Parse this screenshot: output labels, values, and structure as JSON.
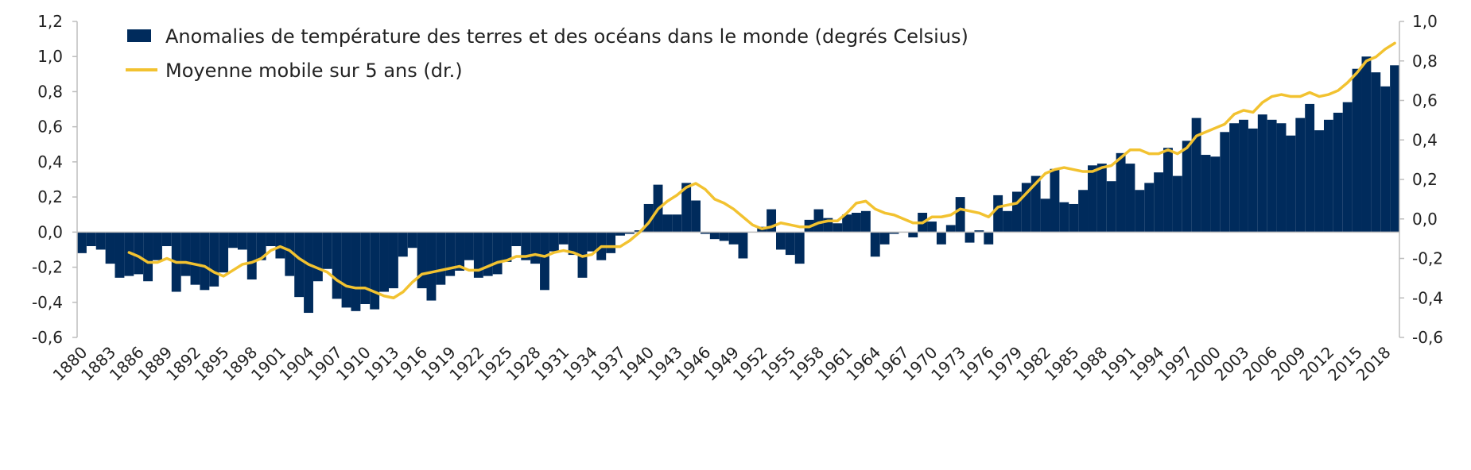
{
  "chart_data": {
    "type": "bar",
    "title": "",
    "xlabel": "",
    "ylabel": "",
    "categories": [
      1880,
      1881,
      1882,
      1883,
      1884,
      1885,
      1886,
      1887,
      1888,
      1889,
      1890,
      1891,
      1892,
      1893,
      1894,
      1895,
      1896,
      1897,
      1898,
      1899,
      1900,
      1901,
      1902,
      1903,
      1904,
      1905,
      1906,
      1907,
      1908,
      1909,
      1910,
      1911,
      1912,
      1913,
      1914,
      1915,
      1916,
      1917,
      1918,
      1919,
      1920,
      1921,
      1922,
      1923,
      1924,
      1925,
      1926,
      1927,
      1928,
      1929,
      1930,
      1931,
      1932,
      1933,
      1934,
      1935,
      1936,
      1937,
      1938,
      1939,
      1940,
      1941,
      1942,
      1943,
      1944,
      1945,
      1946,
      1947,
      1948,
      1949,
      1950,
      1951,
      1952,
      1953,
      1954,
      1955,
      1956,
      1957,
      1958,
      1959,
      1960,
      1961,
      1962,
      1963,
      1964,
      1965,
      1966,
      1967,
      1968,
      1969,
      1970,
      1971,
      1972,
      1973,
      1974,
      1975,
      1976,
      1977,
      1978,
      1979,
      1980,
      1981,
      1982,
      1983,
      1984,
      1985,
      1986,
      1987,
      1988,
      1989,
      1990,
      1991,
      1992,
      1993,
      1994,
      1995,
      1996,
      1997,
      1998,
      1999,
      2000,
      2001,
      2002,
      2003,
      2004,
      2005,
      2006,
      2007,
      2008,
      2009,
      2010,
      2011,
      2012,
      2013,
      2014,
      2015,
      2016,
      2017,
      2018,
      2019
    ],
    "x_tick_labels": [
      "1880",
      "1883",
      "1886",
      "1889",
      "1892",
      "1895",
      "1898",
      "1901",
      "1904",
      "1907",
      "1910",
      "1913",
      "1916",
      "1919",
      "1922",
      "1925",
      "1928",
      "1931",
      "1934",
      "1937",
      "1940",
      "1943",
      "1946",
      "1949",
      "1952",
      "1955",
      "1958",
      "1961",
      "1964",
      "1967",
      "1970",
      "1973",
      "1976",
      "1979",
      "1982",
      "1985",
      "1988",
      "1991",
      "1994",
      "1997",
      "2000",
      "2003",
      "2006",
      "2009",
      "2012",
      "2015",
      "2018"
    ],
    "y_left": {
      "min": -0.6,
      "max": 1.2,
      "ticks": [
        "-0,6",
        "-0,4",
        "-0,2",
        "0,0",
        "0,2",
        "0,4",
        "0,6",
        "0,8",
        "1,0",
        "1,2"
      ]
    },
    "y_right": {
      "min": -0.6,
      "max": 1.0,
      "ticks": [
        "-0,6",
        "-0,4",
        "-0,2",
        "0,0",
        "0,2",
        "0,4",
        "0,6",
        "0,8",
        "1,0"
      ]
    },
    "legend_position": "top-left",
    "grid": false,
    "series": [
      {
        "name": "Anomalies de température des terres et des océans dans le monde (degrés Celsius)",
        "type": "bar",
        "axis": "left",
        "color": "#002b5c",
        "values": [
          -0.12,
          -0.08,
          -0.1,
          -0.18,
          -0.26,
          -0.25,
          -0.24,
          -0.28,
          -0.16,
          -0.08,
          -0.34,
          -0.25,
          -0.3,
          -0.33,
          -0.31,
          -0.23,
          -0.09,
          -0.1,
          -0.27,
          -0.16,
          -0.08,
          -0.15,
          -0.25,
          -0.37,
          -0.46,
          -0.28,
          -0.21,
          -0.38,
          -0.43,
          -0.45,
          -0.41,
          -0.44,
          -0.34,
          -0.32,
          -0.14,
          -0.09,
          -0.32,
          -0.39,
          -0.3,
          -0.25,
          -0.22,
          -0.16,
          -0.26,
          -0.25,
          -0.24,
          -0.17,
          -0.08,
          -0.16,
          -0.18,
          -0.33,
          -0.11,
          -0.07,
          -0.13,
          -0.26,
          -0.11,
          -0.16,
          -0.12,
          -0.02,
          -0.01,
          0.01,
          0.16,
          0.27,
          0.1,
          0.1,
          0.28,
          0.18,
          -0.01,
          -0.04,
          -0.05,
          -0.07,
          -0.15,
          0.0,
          0.03,
          0.13,
          -0.1,
          -0.13,
          -0.18,
          0.07,
          0.13,
          0.08,
          0.05,
          0.1,
          0.11,
          0.12,
          -0.14,
          -0.07,
          -0.01,
          0.0,
          -0.03,
          0.11,
          0.06,
          -0.07,
          0.04,
          0.2,
          -0.06,
          0.01,
          -0.07,
          0.21,
          0.12,
          0.23,
          0.28,
          0.32,
          0.19,
          0.36,
          0.17,
          0.16,
          0.24,
          0.38,
          0.39,
          0.29,
          0.45,
          0.39,
          0.24,
          0.28,
          0.34,
          0.48,
          0.32,
          0.52,
          0.65,
          0.44,
          0.43,
          0.57,
          0.62,
          0.64,
          0.59,
          0.67,
          0.64,
          0.62,
          0.55,
          0.65,
          0.73,
          0.58,
          0.64,
          0.68,
          0.74,
          0.93,
          1.0,
          0.91,
          0.83,
          0.95
        ]
      },
      {
        "name": "Moyenne mobile sur 5 ans (dr.)",
        "type": "line",
        "axis": "right",
        "color": "#f2c230",
        "x": [
          1885,
          1886,
          1887,
          1888,
          1889,
          1890,
          1891,
          1892,
          1893,
          1894,
          1895,
          1896,
          1897,
          1898,
          1899,
          1900,
          1901,
          1902,
          1903,
          1904,
          1905,
          1906,
          1907,
          1908,
          1909,
          1910,
          1911,
          1912,
          1913,
          1914,
          1915,
          1916,
          1917,
          1918,
          1919,
          1920,
          1921,
          1922,
          1923,
          1924,
          1925,
          1926,
          1927,
          1928,
          1929,
          1930,
          1931,
          1932,
          1933,
          1934,
          1935,
          1936,
          1937,
          1938,
          1939,
          1940,
          1941,
          1942,
          1943,
          1944,
          1945,
          1946,
          1947,
          1948,
          1949,
          1950,
          1951,
          1952,
          1953,
          1954,
          1955,
          1956,
          1957,
          1958,
          1959,
          1960,
          1961,
          1962,
          1963,
          1964,
          1965,
          1966,
          1967,
          1968,
          1969,
          1970,
          1971,
          1972,
          1973,
          1974,
          1975,
          1976,
          1977,
          1978,
          1979,
          1980,
          1981,
          1982,
          1983,
          1984,
          1985,
          1986,
          1987,
          1988,
          1989,
          1990,
          1991,
          1992,
          1993,
          1994,
          1995,
          1996,
          1997,
          1998,
          1999,
          2000,
          2001,
          2002,
          2003,
          2004,
          2005,
          2006,
          2007,
          2008,
          2009,
          2010,
          2011,
          2012,
          2013,
          2014,
          2015,
          2016,
          2017,
          2018,
          2019
        ],
        "values": [
          -0.17,
          -0.19,
          -0.22,
          -0.22,
          -0.2,
          -0.22,
          -0.22,
          -0.23,
          -0.24,
          -0.27,
          -0.29,
          -0.26,
          -0.23,
          -0.22,
          -0.2,
          -0.16,
          -0.14,
          -0.16,
          -0.2,
          -0.23,
          -0.25,
          -0.27,
          -0.31,
          -0.34,
          -0.35,
          -0.35,
          -0.37,
          -0.39,
          -0.4,
          -0.37,
          -0.32,
          -0.28,
          -0.27,
          -0.26,
          -0.25,
          -0.24,
          -0.26,
          -0.26,
          -0.24,
          -0.22,
          -0.21,
          -0.19,
          -0.19,
          -0.18,
          -0.19,
          -0.17,
          -0.16,
          -0.17,
          -0.19,
          -0.18,
          -0.14,
          -0.14,
          -0.14,
          -0.11,
          -0.07,
          -0.02,
          0.05,
          0.09,
          0.12,
          0.16,
          0.18,
          0.15,
          0.1,
          0.08,
          0.05,
          0.01,
          -0.03,
          -0.05,
          -0.04,
          -0.02,
          -0.03,
          -0.04,
          -0.04,
          -0.02,
          -0.01,
          -0.01,
          0.03,
          0.08,
          0.09,
          0.05,
          0.03,
          0.02,
          0.0,
          -0.02,
          -0.02,
          0.01,
          0.01,
          0.02,
          0.05,
          0.04,
          0.03,
          0.01,
          0.06,
          0.07,
          0.08,
          0.13,
          0.18,
          0.23,
          0.25,
          0.26,
          0.25,
          0.24,
          0.24,
          0.26,
          0.27,
          0.31,
          0.35,
          0.35,
          0.33,
          0.33,
          0.35,
          0.33,
          0.36,
          0.42,
          0.44,
          0.46,
          0.48,
          0.53,
          0.55,
          0.54,
          0.59,
          0.62,
          0.63,
          0.62,
          0.62,
          0.64,
          0.62,
          0.63,
          0.65,
          0.69,
          0.74,
          0.8,
          0.82,
          0.86,
          0.89
        ]
      }
    ]
  }
}
